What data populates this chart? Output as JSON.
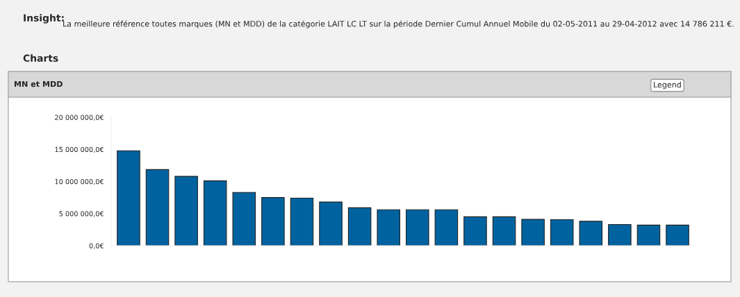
{
  "chart_data": {
    "type": "bar",
    "title": "MN et MDD",
    "annotations": [
      "Insight:",
      "La meilleure référence toutes marques (MN et MDD) de la catégorie LAIT LC LT sur la période Dernier Cumul Annuel Mobile du 02-05-2011 au 29-04-2012 avec 14 786 211 €.",
      "Charts",
      "Legend"
    ],
    "categories": [
      null,
      null,
      null,
      null,
      null,
      null,
      null,
      null,
      null,
      null,
      null,
      null,
      null,
      null,
      null,
      null,
      null,
      null,
      null,
      null
    ],
    "values": [
      14786211,
      11850000,
      10800000,
      10100000,
      8300000,
      7500000,
      7400000,
      6800000,
      5900000,
      5600000,
      5600000,
      5600000,
      4500000,
      4500000,
      4100000,
      4050000,
      3800000,
      3300000,
      3200000,
      3200000
    ],
    "color": "#0063a0",
    "ylim": [
      0,
      20000000
    ],
    "yticks": [
      {
        "value": 0,
        "label": "0,0€"
      },
      {
        "value": 5000000,
        "label": "5 000 000,0€"
      },
      {
        "value": 10000000,
        "label": "10 000 000,0€"
      },
      {
        "value": 15000000,
        "label": "15 000 000,0€"
      },
      {
        "value": 20000000,
        "label": "20 000 000,0€"
      }
    ],
    "grid": false
  }
}
